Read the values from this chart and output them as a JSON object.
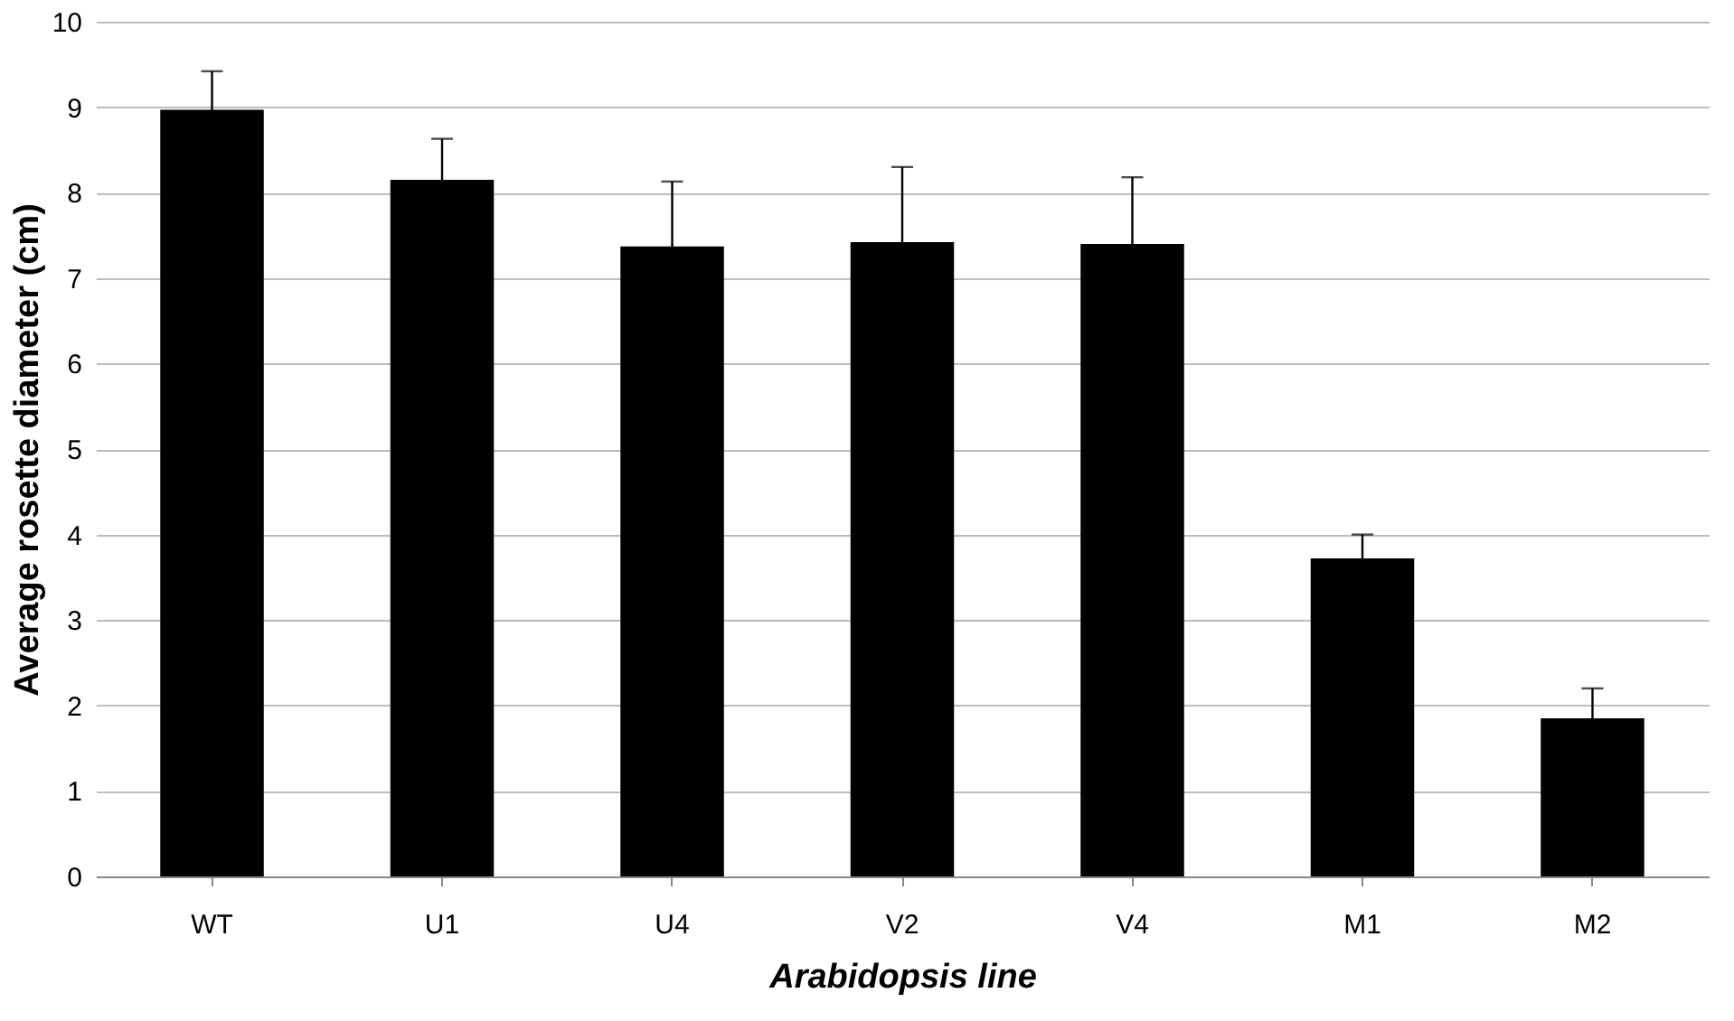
{
  "chart_data": {
    "type": "bar",
    "xlabel": "Arabidopsis line",
    "ylabel": "Average rosette diameter (cm)",
    "categories": [
      "WT",
      "U1",
      "U4",
      "V2",
      "V4",
      "M1",
      "M2"
    ],
    "values": [
      8.97,
      8.15,
      7.37,
      7.42,
      7.4,
      3.72,
      1.85
    ],
    "errors": [
      0.45,
      0.48,
      0.76,
      0.88,
      0.78,
      0.28,
      0.35
    ],
    "color": "#000000",
    "ylim": [
      0,
      10
    ],
    "yticks": [
      0,
      1,
      2,
      3,
      4,
      5,
      6,
      7,
      8,
      9,
      10
    ],
    "grid": "y"
  }
}
